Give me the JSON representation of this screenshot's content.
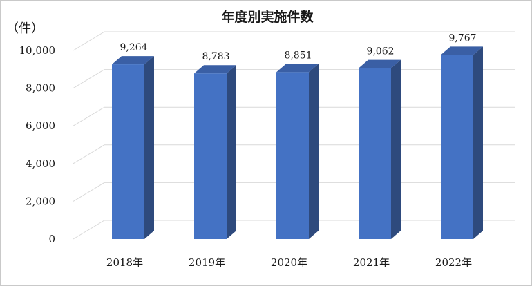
{
  "chart_data": {
    "type": "bar",
    "title": "年度別実施件数",
    "unit_label": "（件）",
    "categories": [
      "2018年",
      "2019年",
      "2020年",
      "2021年",
      "2022年"
    ],
    "values": [
      9264,
      8783,
      8851,
      9062,
      9767
    ],
    "data_labels": [
      "9,264",
      "8,783",
      "8,851",
      "9,062",
      "9,767"
    ],
    "y_ticks": [
      "0",
      "2,000",
      "4,000",
      "6,000",
      "8,000",
      "10,000"
    ],
    "y_tick_values": [
      0,
      2000,
      4000,
      6000,
      8000,
      10000
    ],
    "ylim": [
      0,
      10000
    ],
    "grid": true,
    "legend": "none",
    "style": "3d-column",
    "colors": {
      "front": "#4472c4",
      "side": "#2e4a7d",
      "top": "#3a5fa5",
      "grid": "#d9d9d9"
    }
  }
}
